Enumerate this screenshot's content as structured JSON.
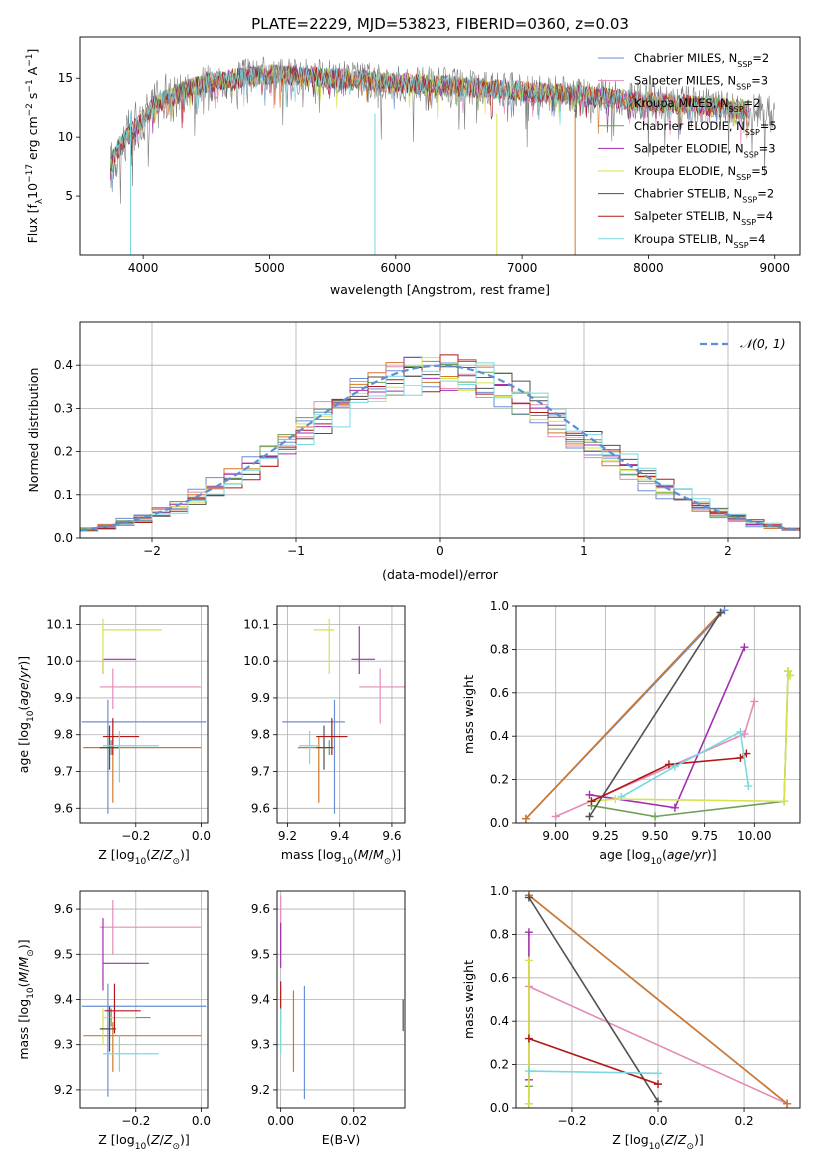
{
  "figure": {
    "title": "PLATE=2229, MJD=53823, FIBERID=0360, z=0.03",
    "fits": [
      {
        "name": "Chabrier MILES",
        "nssp": "2",
        "color": "#6a8fd4"
      },
      {
        "name": "Salpeter MILES",
        "nssp": "3",
        "color": "#e58bb8"
      },
      {
        "name": "Kroupa MILES",
        "nssp": "2",
        "color": "#d2772a"
      },
      {
        "name": "Chabrier ELODIE",
        "nssp": "5",
        "color": "#6f9f55"
      },
      {
        "name": "Salpeter ELODIE",
        "nssp": "3",
        "color": "#a02fb0"
      },
      {
        "name": "Kroupa ELODIE",
        "nssp": "5",
        "color": "#d8e24d"
      },
      {
        "name": "Chabrier STELIB",
        "nssp": "2",
        "color": "#4f4f4f"
      },
      {
        "name": "Salpeter STELIB",
        "nssp": "4",
        "color": "#b01818"
      },
      {
        "name": "Kroupa STELIB",
        "nssp": "4",
        "color": "#79d9e0"
      }
    ],
    "data_color": "#7f7f7f"
  },
  "chart_data": [
    {
      "id": "spectrum",
      "type": "line",
      "xlabel": "wavelength [Angstrom, rest frame]",
      "ylabel_parts": [
        "Flux [f",
        "λ",
        "10",
        "−17",
        " erg cm",
        "−2",
        " s",
        "−1",
        " A",
        "−1",
        "]"
      ],
      "xlim": [
        3500,
        9200
      ],
      "ylim": [
        0,
        18.5
      ],
      "xticks": [
        4000,
        5000,
        6000,
        7000,
        8000,
        9000
      ],
      "yticks": [
        5,
        10,
        15
      ],
      "continuum": [
        [
          3740,
          7.5
        ],
        [
          3800,
          9.0
        ],
        [
          3900,
          10.4
        ],
        [
          4000,
          11.6
        ],
        [
          4100,
          12.8
        ],
        [
          4300,
          13.8
        ],
        [
          4500,
          14.6
        ],
        [
          4800,
          15.1
        ],
        [
          5000,
          15.3
        ],
        [
          5200,
          15.2
        ],
        [
          5500,
          15.0
        ],
        [
          6000,
          14.6
        ],
        [
          6500,
          14.3
        ],
        [
          7000,
          13.9
        ],
        [
          7500,
          13.5
        ],
        [
          8000,
          13.0
        ],
        [
          8500,
          12.6
        ],
        [
          8800,
          12.3
        ],
        [
          9000,
          12.2
        ]
      ],
      "legend_suffix": "N"
    },
    {
      "id": "residuals",
      "type": "histogram",
      "xlabel": "(data-model)/error",
      "ylabel": "Normed distribution",
      "xlim": [
        -2.5,
        2.5
      ],
      "ylim": [
        0,
        0.5
      ],
      "xticks": [
        -2,
        -1,
        0,
        1,
        2
      ],
      "yticks": [
        0.0,
        0.1,
        0.2,
        0.3,
        0.4
      ],
      "legend_label": "𝒩(0, 1)",
      "reference_color": "#5b8fd6"
    },
    {
      "id": "age-vs-Z",
      "type": "scatter",
      "xlabel": "Z [log10(Z/Z☉)]",
      "ylabel": "age  [log10(age/yr)]",
      "xlim": [
        -0.37,
        0.02
      ],
      "ylim": [
        9.56,
        10.15
      ],
      "xticks": [
        -0.2,
        0.0
      ],
      "yticks": [
        9.6,
        9.7,
        9.8,
        9.9,
        10.0,
        10.1
      ],
      "points": [
        {
          "x": -0.285,
          "y": 9.835,
          "xerr": [
            0.08,
            0.3
          ],
          "yerr": [
            0.25,
            0.06
          ]
        },
        {
          "x": -0.27,
          "y": 9.93,
          "xerr": [
            0.04,
            0.27
          ],
          "yerr": [
            0.06,
            0.05
          ]
        },
        {
          "x": -0.27,
          "y": 9.765,
          "xerr": [
            0.09,
            0.27
          ],
          "yerr": [
            0.15,
            0.03
          ]
        },
        {
          "x": -0.275,
          "y": 9.765,
          "xerr": [
            0.02,
            0.02
          ],
          "yerr": [
            0.02,
            0.02
          ]
        },
        {
          "x": -0.3,
          "y": 10.005,
          "xerr": [
            0.0,
            0.1
          ],
          "yerr": [
            0.04,
            0.0
          ]
        },
        {
          "x": -0.3,
          "y": 10.085,
          "xerr": [
            0.0,
            0.18
          ],
          "yerr": [
            0.12,
            0.03
          ]
        },
        {
          "x": -0.28,
          "y": 9.765,
          "xerr": [
            0.03,
            0.03
          ],
          "yerr": [
            0.06,
            0.06
          ]
        },
        {
          "x": -0.27,
          "y": 9.795,
          "xerr": [
            0.03,
            0.08
          ],
          "yerr": [
            0.05,
            0.05
          ]
        },
        {
          "x": -0.25,
          "y": 9.77,
          "xerr": [
            0.05,
            0.12
          ],
          "yerr": [
            0.1,
            0.04
          ]
        }
      ]
    },
    {
      "id": "age-vs-mass",
      "type": "scatter",
      "xlabel": "mass [log10(M/M☉)]",
      "ylabel": "",
      "xlim": [
        9.16,
        9.65
      ],
      "ylim": [
        9.56,
        10.15
      ],
      "xticks": [
        9.2,
        9.4,
        9.6
      ],
      "yticks": [
        9.6,
        9.7,
        9.8,
        9.9,
        10.0,
        10.1
      ],
      "points": [
        {
          "x": 9.38,
          "y": 9.835,
          "xerr": [
            0.2,
            0.04
          ],
          "yerr": [
            0.25,
            0.06
          ]
        },
        {
          "x": 9.555,
          "y": 9.93,
          "xerr": [
            0.08,
            0.12
          ],
          "yerr": [
            0.1,
            0.05
          ]
        },
        {
          "x": 9.32,
          "y": 9.765,
          "xerr": [
            0.08,
            0.02
          ],
          "yerr": [
            0.15,
            0.03
          ]
        },
        {
          "x": 9.36,
          "y": 9.765,
          "xerr": [
            0.02,
            0.02
          ],
          "yerr": [
            0.02,
            0.02
          ]
        },
        {
          "x": 9.475,
          "y": 10.005,
          "xerr": [
            0.03,
            0.06
          ],
          "yerr": [
            0.04,
            0.09
          ]
        },
        {
          "x": 9.36,
          "y": 10.085,
          "xerr": [
            0.06,
            0.02
          ],
          "yerr": [
            0.12,
            0.03
          ]
        },
        {
          "x": 9.34,
          "y": 9.765,
          "xerr": [
            0.03,
            0.03
          ],
          "yerr": [
            0.06,
            0.06
          ]
        },
        {
          "x": 9.37,
          "y": 9.795,
          "xerr": [
            0.06,
            0.06
          ],
          "yerr": [
            0.05,
            0.05
          ]
        },
        {
          "x": 9.285,
          "y": 9.77,
          "xerr": [
            0.04,
            0.04
          ],
          "yerr": [
            0.05,
            0.04
          ]
        }
      ]
    },
    {
      "id": "weights-vs-age",
      "type": "line",
      "xlabel": "age  [log10(age/yr)]",
      "ylabel": "mass weight",
      "xlim": [
        8.8,
        10.23
      ],
      "ylim": [
        0,
        1
      ],
      "xticks": [
        9.0,
        9.25,
        9.5,
        9.75,
        10.0
      ],
      "yticks": [
        0.0,
        0.2,
        0.4,
        0.6,
        0.8,
        1.0
      ],
      "series": [
        {
          "x": [
            8.85,
            9.85
          ],
          "y": [
            0.02,
            0.98
          ]
        },
        {
          "x": [
            9.0,
            9.95,
            10.0
          ],
          "y": [
            0.03,
            0.41,
            0.56
          ]
        },
        {
          "x": [
            8.85,
            9.83
          ],
          "y": [
            0.02,
            0.97
          ]
        },
        {
          "x": [
            9.18,
            9.5,
            10.15,
            10.17,
            10.18
          ],
          "y": [
            0.08,
            0.03,
            0.1,
            0.7,
            0.68
          ]
        },
        {
          "x": [
            9.17,
            9.6,
            9.95
          ],
          "y": [
            0.13,
            0.07,
            0.81
          ]
        },
        {
          "x": [
            9.18,
            9.3,
            10.15,
            10.17,
            10.18
          ],
          "y": [
            0.1,
            0.11,
            0.1,
            0.7,
            0.68
          ]
        },
        {
          "x": [
            9.17,
            9.83
          ],
          "y": [
            0.03,
            0.97
          ]
        },
        {
          "x": [
            9.18,
            9.57,
            9.93,
            9.96
          ],
          "y": [
            0.1,
            0.27,
            0.3,
            0.32
          ]
        },
        {
          "x": [
            9.33,
            9.6,
            9.93,
            9.97
          ],
          "y": [
            0.12,
            0.26,
            0.42,
            0.17
          ]
        }
      ]
    },
    {
      "id": "mass-vs-Z",
      "type": "scatter",
      "xlabel": "Z [log10(Z/Z☉)]",
      "ylabel": "mass [log10(M/M☉)]",
      "xlim": [
        -0.37,
        0.02
      ],
      "ylim": [
        9.16,
        9.64
      ],
      "xticks": [
        -0.2,
        0.0
      ],
      "yticks": [
        9.2,
        9.3,
        9.4,
        9.5,
        9.6
      ],
      "points": [
        {
          "x": -0.285,
          "y": 9.385,
          "xerr": [
            0.08,
            0.3
          ],
          "yerr": [
            0.2,
            0.05
          ]
        },
        {
          "x": -0.27,
          "y": 9.56,
          "xerr": [
            0.04,
            0.27
          ],
          "yerr": [
            0.06,
            0.06
          ]
        },
        {
          "x": -0.27,
          "y": 9.32,
          "xerr": [
            0.09,
            0.27
          ],
          "yerr": [
            0.08,
            0.03
          ]
        },
        {
          "x": -0.275,
          "y": 9.36,
          "xerr": [
            0.02,
            0.12
          ],
          "yerr": [
            0.02,
            0.02
          ]
        },
        {
          "x": -0.3,
          "y": 9.48,
          "xerr": [
            0.0,
            0.14
          ],
          "yerr": [
            0.06,
            0.1
          ]
        },
        {
          "x": -0.3,
          "y": 9.36,
          "xerr": [
            0.0,
            0.1
          ],
          "yerr": [
            0.06,
            0.02
          ]
        },
        {
          "x": -0.28,
          "y": 9.335,
          "xerr": [
            0.03,
            0.02
          ],
          "yerr": [
            0.05,
            0.05
          ]
        },
        {
          "x": -0.265,
          "y": 9.375,
          "xerr": [
            0.03,
            0.08
          ],
          "yerr": [
            0.05,
            0.06
          ]
        },
        {
          "x": -0.25,
          "y": 9.28,
          "xerr": [
            0.05,
            0.12
          ],
          "yerr": [
            0.04,
            0.04
          ]
        }
      ]
    },
    {
      "id": "mass-vs-ebv",
      "type": "scatter",
      "xlabel": "E(B-V)",
      "ylabel": "",
      "xlim": [
        -0.001,
        0.034
      ],
      "ylim": [
        9.16,
        9.64
      ],
      "xticks": [
        0.0,
        0.02
      ],
      "yticks": [
        9.2,
        9.3,
        9.4,
        9.5,
        9.6
      ],
      "points": [
        {
          "x": 0.0065,
          "y": 9.38,
          "xerr": [
            0,
            0
          ],
          "yerr": [
            0.2,
            0.05
          ]
        },
        {
          "x": 0.0,
          "y": 9.56,
          "xerr": [
            0,
            0
          ],
          "yerr": [
            0.06,
            0.07
          ]
        },
        {
          "x": 0.0035,
          "y": 9.33,
          "xerr": [
            0,
            0
          ],
          "yerr": [
            0.09,
            0.09
          ]
        },
        {
          "x": 0.0,
          "y": 9.36,
          "xerr": [
            0,
            0
          ],
          "yerr": [
            0.02,
            0.02
          ]
        },
        {
          "x": 0.0,
          "y": 9.52,
          "xerr": [
            0,
            0
          ],
          "yerr": [
            0.05,
            0.05
          ]
        },
        {
          "x": 0.0,
          "y": 9.36,
          "xerr": [
            0,
            0
          ],
          "yerr": [
            0.06,
            0.06
          ]
        },
        {
          "x": 0.0335,
          "y": 9.36,
          "xerr": [
            0,
            0
          ],
          "yerr": [
            0.03,
            0.04
          ]
        },
        {
          "x": 0.0,
          "y": 9.41,
          "xerr": [
            0,
            0
          ],
          "yerr": [
            0.03,
            0.03
          ]
        },
        {
          "x": 0.0,
          "y": 9.33,
          "xerr": [
            0,
            0
          ],
          "yerr": [
            0.05,
            0.05
          ]
        }
      ]
    },
    {
      "id": "weights-vs-Z",
      "type": "line",
      "xlabel": "Z [log10(Z/Z☉)]",
      "ylabel": "mass weight",
      "xlim": [
        -0.33,
        0.33
      ],
      "ylim": [
        0,
        1
      ],
      "xticks": [
        -0.2,
        0.0,
        0.2
      ],
      "yticks": [
        0.0,
        0.2,
        0.4,
        0.6,
        0.8,
        1.0
      ],
      "series": [
        {
          "x": [
            -0.3,
            0.3
          ],
          "y": [
            0.98,
            0.02
          ]
        },
        {
          "x": [
            -0.3,
            0.3
          ],
          "y": [
            0.56,
            0.02
          ]
        },
        {
          "x": [
            -0.3,
            0.3
          ],
          "y": [
            0.98,
            0.02
          ]
        },
        {
          "x": [
            -0.3,
            -0.3
          ],
          "y": [
            0.02,
            0.1
          ]
        },
        {
          "x": [
            -0.3,
            -0.3
          ],
          "y": [
            0.13,
            0.81
          ]
        },
        {
          "x": [
            -0.3,
            -0.3
          ],
          "y": [
            0.02,
            0.68
          ]
        },
        {
          "x": [
            -0.3,
            0.0
          ],
          "y": [
            0.97,
            0.03
          ]
        },
        {
          "x": [
            -0.3,
            0.0
          ],
          "y": [
            0.32,
            0.11
          ]
        },
        {
          "x": [
            -0.3,
            0.0
          ],
          "y": [
            0.17,
            0.16
          ]
        }
      ]
    }
  ]
}
